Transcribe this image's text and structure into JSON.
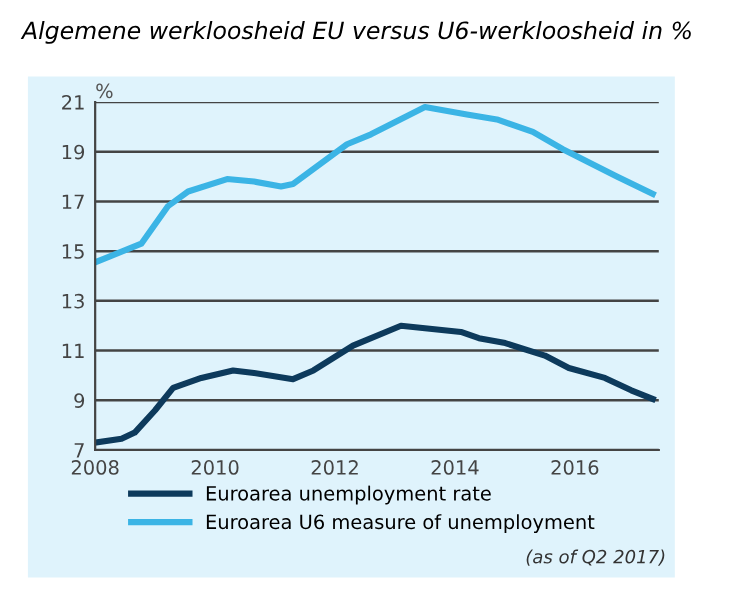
{
  "chart_data": {
    "type": "line",
    "title": "Algemene werkloosheid EU versus U6-werkloosheid in %",
    "ylabel": "%",
    "xlim": [
      2008,
      2017.4
    ],
    "xticks": [
      2008,
      2010,
      2012,
      2014,
      2016
    ],
    "ylim": [
      7,
      21
    ],
    "yticks": [
      7,
      9,
      11,
      13,
      15,
      17,
      19,
      21
    ],
    "grid": "y",
    "legend": "bottom",
    "annotations": [
      "(as of Q2 2017)"
    ],
    "series": [
      {
        "name": "Euroarea unemployment rate",
        "color": "#0d3a5c",
        "x": [
          2008,
          2008.44,
          2008.66,
          2009.0,
          2009.3,
          2009.77,
          2010.3,
          2010.65,
          2011.3,
          2011.64,
          2012.3,
          2013.1,
          2013.5,
          2014.1,
          2014.4,
          2014.84,
          2015.5,
          2015.9,
          2016.5,
          2016.94,
          2017.3
        ],
        "values": [
          7.3,
          7.45,
          7.7,
          8.6,
          9.5,
          9.9,
          10.2,
          10.1,
          9.85,
          10.2,
          11.2,
          12.0,
          11.9,
          11.75,
          11.5,
          11.3,
          10.8,
          10.3,
          9.9,
          9.4,
          9.05
        ]
      },
      {
        "name": "Euroarea U6 measure of unemployment",
        "color": "#3bb4e5",
        "x": [
          2008,
          2008.77,
          2009.21,
          2009.55,
          2010.2,
          2010.65,
          2011.1,
          2011.3,
          2012.2,
          2012.6,
          2013.5,
          2014.2,
          2014.7,
          2015.3,
          2015.8,
          2016.7,
          2017.3
        ],
        "values": [
          14.55,
          15.3,
          16.8,
          17.4,
          17.9,
          17.8,
          17.6,
          17.7,
          19.3,
          19.7,
          20.8,
          20.5,
          20.3,
          19.8,
          19.1,
          18.0,
          17.3
        ]
      }
    ]
  }
}
